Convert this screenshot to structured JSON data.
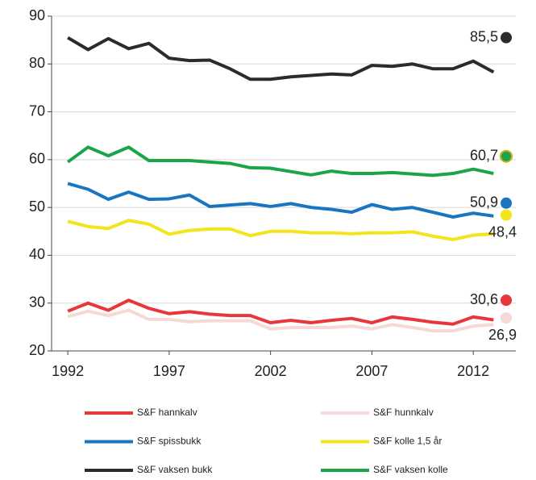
{
  "chart_data": {
    "type": "line",
    "x": [
      1992,
      1993,
      1994,
      1995,
      1996,
      1997,
      1998,
      1999,
      2000,
      2001,
      2002,
      2003,
      2004,
      2005,
      2006,
      2007,
      2008,
      2009,
      2010,
      2011,
      2012,
      2013
    ],
    "xlim": [
      1991.2,
      2014.1
    ],
    "xticks": [
      1992,
      1997,
      2002,
      2007,
      2012
    ],
    "ylim": [
      20,
      90
    ],
    "yticks": [
      20,
      30,
      40,
      50,
      60,
      70,
      80,
      90
    ],
    "grid": true,
    "series": [
      {
        "name": "S&F hannkalv",
        "color": "#e8373a",
        "values": [
          28.3,
          30,
          28.5,
          30.6,
          28.9,
          27.8,
          28.2,
          27.7,
          27.4,
          27.4,
          25.9,
          26.4,
          25.9,
          26.4,
          26.8,
          25.9,
          27.1,
          26.6,
          26,
          25.6,
          27.1,
          26.5
        ]
      },
      {
        "name": "S&F hunnkalv",
        "color": "#f6d9d7",
        "values": [
          27.2,
          28.3,
          27.4,
          28.5,
          26.6,
          26.6,
          26.1,
          26.3,
          26.3,
          26.3,
          24.6,
          24.9,
          24.9,
          24.9,
          25.2,
          24.6,
          25.5,
          24.9,
          24.2,
          24.2,
          25.2,
          25.5
        ]
      },
      {
        "name": "S&F spissbukk",
        "color": "#1a75c0",
        "values": [
          55,
          53.8,
          51.7,
          53.2,
          51.7,
          51.8,
          52.6,
          50.2,
          50.5,
          50.8,
          50.2,
          50.8,
          50,
          49.6,
          49,
          50.6,
          49.6,
          50,
          49,
          48,
          48.8,
          48.2
        ]
      },
      {
        "name": "S&F kolle 1,5 år",
        "color": "#f2e51c",
        "values": [
          47.1,
          46,
          45.6,
          47.3,
          46.5,
          44.4,
          45.2,
          45.5,
          45.5,
          44.1,
          45,
          45,
          44.7,
          44.7,
          44.5,
          44.7,
          44.7,
          44.9,
          44,
          43.3,
          44.2,
          44.5
        ]
      },
      {
        "name": "S&F vaksen bukk",
        "color": "#2b2b2b",
        "values": [
          85.5,
          83,
          85.3,
          83.2,
          84.3,
          81.2,
          80.7,
          80.8,
          79,
          76.8,
          76.8,
          77.3,
          77.6,
          77.9,
          77.7,
          79.7,
          79.5,
          80,
          79,
          79,
          80.6,
          78.3
        ]
      },
      {
        "name": "S&F vaksen kolle",
        "color": "#1ba548",
        "values": [
          59.5,
          62.6,
          60.8,
          62.6,
          59.8,
          59.8,
          59.8,
          59.5,
          59.2,
          58.3,
          58.2,
          57.5,
          56.8,
          57.6,
          57.1,
          57.1,
          57.3,
          57,
          56.7,
          57.1,
          58,
          57.1
        ]
      }
    ],
    "annotations": [
      {
        "value": 85.5,
        "label": "85,5",
        "color": "#2b2b2b"
      },
      {
        "value": 60.7,
        "label": "60,7",
        "color": "#1ba548"
      },
      {
        "value": 50.9,
        "label": "50,9",
        "color": "#1a75c0"
      },
      {
        "value": 48.4,
        "label": "48,4",
        "color": "#f2e51c"
      },
      {
        "value": 30.6,
        "label": "30,6",
        "color": "#e8373a"
      },
      {
        "value": 26.9,
        "label": "26,9",
        "color": "#f6d9d7"
      }
    ]
  }
}
